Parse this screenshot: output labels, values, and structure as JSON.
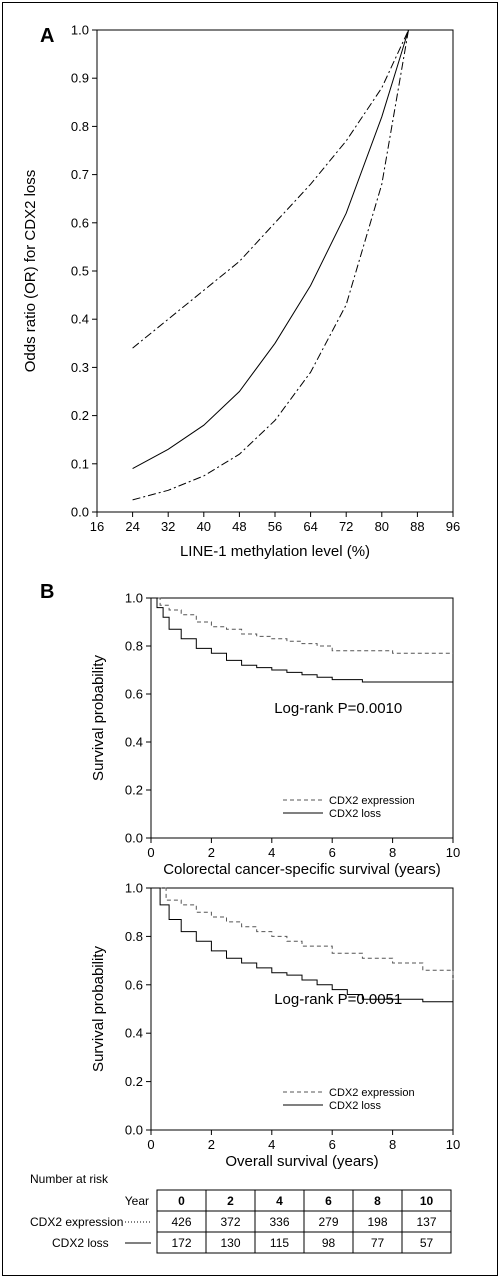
{
  "chart_data": [
    {
      "type": "line",
      "panel_label": "A",
      "xlabel": "LINE-1 methylation level (%)",
      "ylabel": "Odds ratio (OR) for CDX2 loss",
      "xlim": [
        16,
        96
      ],
      "ylim": [
        0.0,
        1.0
      ],
      "x_ticks": [
        "16",
        "24",
        "32",
        "40",
        "48",
        "56",
        "64",
        "72",
        "80",
        "88",
        "96"
      ],
      "y_ticks": [
        "0.0",
        "0.1",
        "0.2",
        "0.3",
        "0.4",
        "0.5",
        "0.6",
        "0.7",
        "0.8",
        "0.9",
        "1.0"
      ],
      "reference_line_y": 1.0,
      "grid": false,
      "series": [
        {
          "style": "solid",
          "x": [
            24,
            32,
            40,
            48,
            56,
            64,
            72,
            80,
            86
          ],
          "y": [
            0.09,
            0.13,
            0.18,
            0.25,
            0.35,
            0.47,
            0.62,
            0.82,
            1.0
          ]
        },
        {
          "style": "dashdot",
          "x": [
            24,
            32,
            40,
            48,
            56,
            64,
            72,
            80,
            86
          ],
          "y": [
            0.34,
            0.4,
            0.46,
            0.52,
            0.6,
            0.68,
            0.77,
            0.88,
            1.0
          ]
        },
        {
          "style": "dashdot",
          "x": [
            24,
            32,
            40,
            48,
            56,
            64,
            72,
            80,
            86
          ],
          "y": [
            0.025,
            0.045,
            0.075,
            0.12,
            0.19,
            0.29,
            0.43,
            0.68,
            1.0
          ]
        }
      ]
    },
    {
      "type": "line",
      "panel_label": "B",
      "xlabel": "Colorectal cancer-specific survival (years)",
      "ylabel": "Survival probability",
      "annotation": "Log-rank P=0.0010",
      "xlim": [
        0,
        10
      ],
      "ylim": [
        0.0,
        1.0
      ],
      "x_ticks": [
        "0",
        "2",
        "4",
        "6",
        "8",
        "10"
      ],
      "y_ticks": [
        "0.0",
        "0.2",
        "0.4",
        "0.6",
        "0.8",
        "1.0"
      ],
      "legend_position": "bottom-right",
      "grid": false,
      "series": [
        {
          "name": "CDX2 expression",
          "style": "dashed",
          "x": [
            0,
            0.3,
            0.6,
            1,
            1.5,
            2,
            2.5,
            3,
            3.5,
            4,
            4.5,
            5,
            5.5,
            6,
            7,
            8,
            9,
            10
          ],
          "y": [
            1.0,
            0.97,
            0.95,
            0.93,
            0.9,
            0.88,
            0.87,
            0.85,
            0.84,
            0.83,
            0.82,
            0.81,
            0.8,
            0.78,
            0.78,
            0.77,
            0.77,
            0.77
          ]
        },
        {
          "name": "CDX2 loss",
          "style": "solid",
          "x": [
            0,
            0.2,
            0.4,
            0.6,
            1,
            1.5,
            2,
            2.5,
            3,
            3.5,
            4,
            4.5,
            5,
            5.5,
            6,
            7,
            8,
            9,
            10
          ],
          "y": [
            1.0,
            0.96,
            0.92,
            0.87,
            0.83,
            0.79,
            0.77,
            0.74,
            0.72,
            0.71,
            0.7,
            0.69,
            0.68,
            0.67,
            0.66,
            0.65,
            0.65,
            0.65,
            0.65
          ]
        }
      ]
    },
    {
      "type": "line",
      "xlabel": "Overall survival (years)",
      "ylabel": "Survival probability",
      "annotation": "Log-rank P=0.0051",
      "xlim": [
        0,
        10
      ],
      "ylim": [
        0.0,
        1.0
      ],
      "x_ticks": [
        "0",
        "2",
        "4",
        "6",
        "8",
        "10"
      ],
      "y_ticks": [
        "0.0",
        "0.2",
        "0.4",
        "0.6",
        "0.8",
        "1.0"
      ],
      "legend_position": "bottom-right",
      "grid": false,
      "series": [
        {
          "name": "CDX2 expression",
          "style": "dashed",
          "x": [
            0,
            0.5,
            1,
            1.5,
            2,
            2.5,
            3,
            3.5,
            4,
            4.5,
            5,
            6,
            7,
            8,
            9,
            10
          ],
          "y": [
            1.0,
            0.95,
            0.93,
            0.9,
            0.88,
            0.86,
            0.84,
            0.82,
            0.8,
            0.78,
            0.76,
            0.73,
            0.71,
            0.69,
            0.66,
            0.62
          ]
        },
        {
          "name": "CDX2 loss",
          "style": "solid",
          "x": [
            0,
            0.3,
            0.6,
            1,
            1.5,
            2,
            2.5,
            3,
            3.5,
            4,
            4.5,
            5,
            5.5,
            6,
            6.5,
            7,
            8,
            9,
            10
          ],
          "y": [
            1.0,
            0.93,
            0.87,
            0.82,
            0.78,
            0.74,
            0.71,
            0.69,
            0.67,
            0.65,
            0.64,
            0.62,
            0.6,
            0.58,
            0.56,
            0.54,
            0.54,
            0.53,
            0.52
          ]
        }
      ]
    },
    {
      "type": "table",
      "title": "Number at risk",
      "header_label": "Year",
      "columns": [
        "0",
        "2",
        "4",
        "6",
        "8",
        "10"
      ],
      "rows": [
        {
          "name": "CDX2 expression",
          "values": [
            "426",
            "372",
            "336",
            "279",
            "198",
            "137"
          ]
        },
        {
          "name": "CDX2 loss",
          "values": [
            "172",
            "130",
            "115",
            "98",
            "77",
            "57"
          ]
        }
      ]
    }
  ]
}
